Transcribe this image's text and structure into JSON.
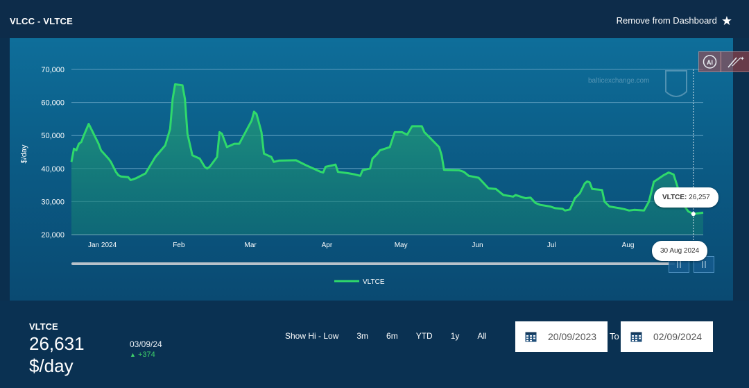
{
  "header": {
    "title": "VLCC - VLTCE",
    "remove_label": "Remove from Dashboard"
  },
  "icons": {
    "star": "star-icon",
    "ai": "ai-icon",
    "magic": "magic-wand-icon",
    "calendar": "calendar-icon",
    "zoom": "zoom-handle-icon"
  },
  "colors": {
    "line": "#2fd96b",
    "fill": "#1f8a6a",
    "panel": "#0e6e9a",
    "background": "#0b2f4e"
  },
  "watermark": {
    "text": "balticexchange.com"
  },
  "chart_data": {
    "type": "area",
    "ylabel": "$/day",
    "ylim": [
      20000,
      70000
    ],
    "y_ticks": [
      20000,
      30000,
      40000,
      50000,
      60000,
      70000
    ],
    "y_tick_labels": [
      "20,000",
      "30,000",
      "40,000",
      "50,000",
      "60,000",
      "70,000"
    ],
    "x_tick_labels": [
      "Jan 2024",
      "Feb",
      "Mar",
      "Apr",
      "May",
      "Jun",
      "Jul",
      "Aug"
    ],
    "x_tick_dates": [
      "2024-01-01",
      "2024-02-01",
      "2024-03-01",
      "2024-04-01",
      "2024-05-01",
      "2024-06-01",
      "2024-07-01",
      "2024-08-01"
    ],
    "legend": "bottom-center",
    "grid": true,
    "series": [
      {
        "name": "VLTCE",
        "points": [
          [
            "2023-12-22",
            42000
          ],
          [
            "2023-12-23",
            46000
          ],
          [
            "2023-12-24",
            45500
          ],
          [
            "2023-12-25",
            47500
          ],
          [
            "2023-12-26",
            48000
          ],
          [
            "2023-12-27",
            50000
          ],
          [
            "2023-12-29",
            53500
          ],
          [
            "2023-12-30",
            52000
          ],
          [
            "2024-01-02",
            47500
          ],
          [
            "2024-01-03",
            45500
          ],
          [
            "2024-01-06",
            43000
          ],
          [
            "2024-01-07",
            42000
          ],
          [
            "2024-01-09",
            39000
          ],
          [
            "2024-01-10",
            38000
          ],
          [
            "2024-01-11",
            37600
          ],
          [
            "2024-01-14",
            37400
          ],
          [
            "2024-01-15",
            36500
          ],
          [
            "2024-01-17",
            37000
          ],
          [
            "2024-01-21",
            38500
          ],
          [
            "2024-01-25",
            43500
          ],
          [
            "2024-01-29",
            47000
          ],
          [
            "2024-01-31",
            52000
          ],
          [
            "2024-02-01",
            61000
          ],
          [
            "2024-02-02",
            65500
          ],
          [
            "2024-02-05",
            65200
          ],
          [
            "2024-02-06",
            61000
          ],
          [
            "2024-02-07",
            50500
          ],
          [
            "2024-02-09",
            44000
          ],
          [
            "2024-02-12",
            43000
          ],
          [
            "2024-02-14",
            40500
          ],
          [
            "2024-02-15",
            40000
          ],
          [
            "2024-02-16",
            40500
          ],
          [
            "2024-02-19",
            43500
          ],
          [
            "2024-02-20",
            51000
          ],
          [
            "2024-02-21",
            50500
          ],
          [
            "2024-02-23",
            46500
          ],
          [
            "2024-02-26",
            47500
          ],
          [
            "2024-02-28",
            47500
          ],
          [
            "2024-03-04",
            54500
          ],
          [
            "2024-03-05",
            57200
          ],
          [
            "2024-03-06",
            56500
          ],
          [
            "2024-03-08",
            51000
          ],
          [
            "2024-03-09",
            44500
          ],
          [
            "2024-03-12",
            43500
          ],
          [
            "2024-03-13",
            42000
          ],
          [
            "2024-03-15",
            42400
          ],
          [
            "2024-03-22",
            42500
          ],
          [
            "2024-03-26",
            41000
          ],
          [
            "2024-03-29",
            40000
          ],
          [
            "2024-04-01",
            39000
          ],
          [
            "2024-04-02",
            38800
          ],
          [
            "2024-04-03",
            40500
          ],
          [
            "2024-04-06",
            41000
          ],
          [
            "2024-04-07",
            41200
          ],
          [
            "2024-04-08",
            39000
          ],
          [
            "2024-04-12",
            38600
          ],
          [
            "2024-04-15",
            38200
          ],
          [
            "2024-04-17",
            37800
          ],
          [
            "2024-04-18",
            39500
          ],
          [
            "2024-04-21",
            40000
          ],
          [
            "2024-04-22",
            43000
          ],
          [
            "2024-04-24",
            44500
          ],
          [
            "2024-04-25",
            45500
          ],
          [
            "2024-04-29",
            46500
          ],
          [
            "2024-05-01",
            51000
          ],
          [
            "2024-05-04",
            51000
          ],
          [
            "2024-05-06",
            50200
          ],
          [
            "2024-05-08",
            52800
          ],
          [
            "2024-05-12",
            52800
          ],
          [
            "2024-05-13",
            51000
          ],
          [
            "2024-05-15",
            49500
          ],
          [
            "2024-05-19",
            46500
          ],
          [
            "2024-05-20",
            44000
          ],
          [
            "2024-05-21",
            39600
          ],
          [
            "2024-05-27",
            39500
          ],
          [
            "2024-05-29",
            39000
          ],
          [
            "2024-05-31",
            37800
          ],
          [
            "2024-06-02",
            37500
          ],
          [
            "2024-06-04",
            37200
          ],
          [
            "2024-06-06",
            35600
          ],
          [
            "2024-06-08",
            34000
          ],
          [
            "2024-06-11",
            33800
          ],
          [
            "2024-06-14",
            32000
          ],
          [
            "2024-06-18",
            31500
          ],
          [
            "2024-06-19",
            32000
          ],
          [
            "2024-06-21",
            31500
          ],
          [
            "2024-06-23",
            31000
          ],
          [
            "2024-06-25",
            31200
          ],
          [
            "2024-06-27",
            29600
          ],
          [
            "2024-06-29",
            29000
          ],
          [
            "2024-07-03",
            28500
          ],
          [
            "2024-07-05",
            28000
          ],
          [
            "2024-07-08",
            27800
          ],
          [
            "2024-07-09",
            27300
          ],
          [
            "2024-07-11",
            27600
          ],
          [
            "2024-07-13",
            31000
          ],
          [
            "2024-07-15",
            32500
          ],
          [
            "2024-07-17",
            35500
          ],
          [
            "2024-07-18",
            36100
          ],
          [
            "2024-07-19",
            35800
          ],
          [
            "2024-07-20",
            33800
          ],
          [
            "2024-07-24",
            33500
          ],
          [
            "2024-07-25",
            30000
          ],
          [
            "2024-07-27",
            28500
          ],
          [
            "2024-07-31",
            28000
          ],
          [
            "2024-08-02",
            27700
          ],
          [
            "2024-08-04",
            27300
          ],
          [
            "2024-08-06",
            27500
          ],
          [
            "2024-08-10",
            27300
          ],
          [
            "2024-08-12",
            30000
          ],
          [
            "2024-08-14",
            36000
          ],
          [
            "2024-08-15",
            36500
          ],
          [
            "2024-08-18",
            38000
          ],
          [
            "2024-08-20",
            38800
          ],
          [
            "2024-08-22",
            38200
          ],
          [
            "2024-08-24",
            33500
          ],
          [
            "2024-08-26",
            29000
          ],
          [
            "2024-08-28",
            27000
          ],
          [
            "2024-08-30",
            26257
          ],
          [
            "2024-09-03",
            26631
          ]
        ]
      }
    ],
    "tooltip": {
      "series_label": "VLTCE:",
      "value": "26,257",
      "date": "30 Aug 2024",
      "date_iso": "2024-08-30"
    }
  },
  "summary": {
    "name": "VLTCE",
    "value": "26,631",
    "unit": "$/day",
    "date": "03/09/24",
    "change": "+374",
    "change_arrow": "▲"
  },
  "ranges": [
    "Show Hi - Low",
    "3m",
    "6m",
    "YTD",
    "1y",
    "All"
  ],
  "date_range": {
    "from": "20/09/2023",
    "to_label": "To",
    "to": "02/09/2024"
  }
}
